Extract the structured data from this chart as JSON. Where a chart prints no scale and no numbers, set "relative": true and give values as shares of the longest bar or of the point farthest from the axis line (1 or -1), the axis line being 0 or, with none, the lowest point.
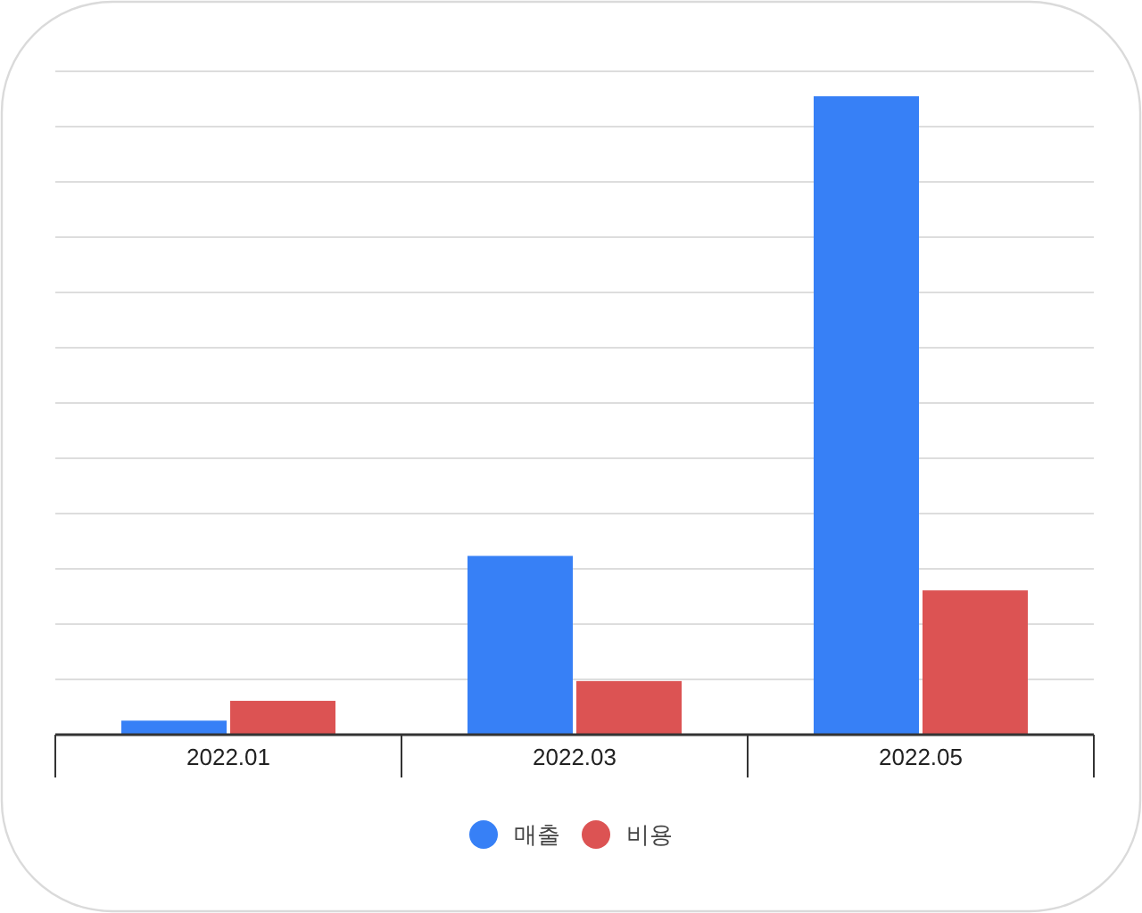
{
  "chart_data": {
    "type": "bar",
    "categories": [
      "2022.01",
      "2022.03",
      "2022.05"
    ],
    "series": [
      {
        "name": "매출",
        "color": "#3780f6",
        "values": [
          0.022,
          0.28,
          1
        ]
      },
      {
        "name": "비용",
        "color": "#dc5353",
        "values": [
          0.053,
          0.084,
          0.226
        ]
      }
    ],
    "relative": true,
    "grid": "y",
    "legend": "bottom"
  }
}
